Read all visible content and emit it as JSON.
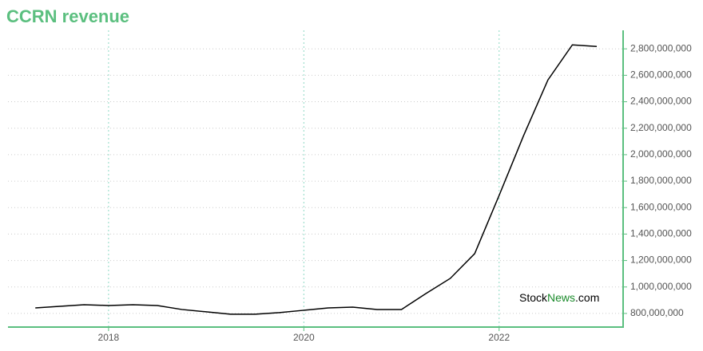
{
  "chart_data": {
    "type": "line",
    "title": "CCRN revenue",
    "x": [
      2017.25,
      2017.5,
      2017.75,
      2018.0,
      2018.25,
      2018.5,
      2018.75,
      2019.0,
      2019.25,
      2019.5,
      2019.75,
      2020.0,
      2020.25,
      2020.5,
      2020.75,
      2021.0,
      2021.25,
      2021.5,
      2021.75,
      2022.0,
      2022.25,
      2022.5,
      2022.75,
      2023.0
    ],
    "series": [
      {
        "color": "#000000",
        "values": [
          842000000,
          854000000,
          866000000,
          860000000,
          866000000,
          860000000,
          830000000,
          812000000,
          794000000,
          794000000,
          806000000,
          824000000,
          842000000,
          848000000,
          830000000,
          830000000,
          950000000,
          1065000000,
          1252000000,
          1692000000,
          2143000000,
          2565000000,
          2830000000,
          2818000000
        ]
      }
    ],
    "xlim": [
      2016.97,
      2023.27
    ],
    "xticks": [
      2018,
      2020,
      2022
    ],
    "ylim": [
      697000000,
      2940000000
    ],
    "yticks": [
      {
        "value": 800000000,
        "label": "800,000,000"
      },
      {
        "value": 1000000000,
        "label": "1,000,000,000"
      },
      {
        "value": 1200000000,
        "label": "1,200,000,000"
      },
      {
        "value": 1400000000,
        "label": "1,400,000,000"
      },
      {
        "value": 1600000000,
        "label": "1,600,000,000"
      },
      {
        "value": 1800000000,
        "label": "1,800,000,000"
      },
      {
        "value": 2000000000,
        "label": "2,000,000,000"
      },
      {
        "value": 2200000000,
        "label": "2,200,000,000"
      },
      {
        "value": 2400000000,
        "label": "2,400,000,000"
      },
      {
        "value": 2600000000,
        "label": "2,600,000,000"
      },
      {
        "value": 2800000000,
        "label": "2,800,000,000"
      }
    ],
    "grid": true,
    "axis_color": "#5bbf7f",
    "watermark": [
      "Stock",
      "News",
      ".com"
    ]
  }
}
